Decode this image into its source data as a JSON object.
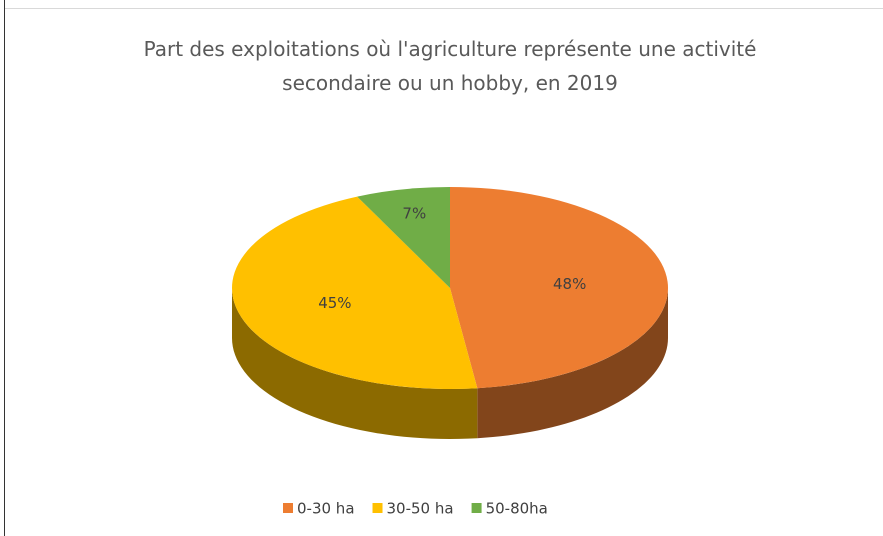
{
  "chart_data": {
    "type": "pie",
    "title": "Part des exploitations où l'agriculture représente une activité secondaire ou un hobby, en 2019",
    "categories": [
      "0-30 ha",
      "30-50 ha",
      "50-80ha"
    ],
    "values": [
      48,
      45,
      7
    ],
    "value_labels": [
      "48%",
      "45%",
      "7%"
    ],
    "colors": [
      "#ed7d31",
      "#ffc000",
      "#70ad47"
    ],
    "legend": "bottom"
  }
}
